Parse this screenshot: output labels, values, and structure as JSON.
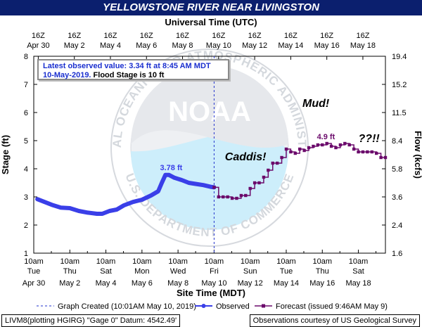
{
  "title": "YELLOWSTONE RIVER NEAR LIVINGSTON",
  "info": {
    "line1": "Latest observed value: 3.34 ft at 8:45 AM MDT",
    "line2_date": "10-May-2019.",
    "line2_flood": " Flood Stage is 10 ft"
  },
  "footer": {
    "left": "LIVM8(plotting HGIRG) \"Gage 0\" Datum: 4542.49'",
    "right": "Observations courtesy of US Geological Survey"
  },
  "watermark": {
    "center_text": "NOAA",
    "ring_text": "NATIONAL OCEANIC AND ATMOSPHERIC ADMINISTRATION",
    "bottom_text": "U.S. DEPARTMENT OF COMMERCE"
  },
  "colors": {
    "observed": "#3a3fe8",
    "forecast": "#6b0a6b",
    "title_bar": "#0b1f6e",
    "info_text": "#1a2fcf"
  },
  "chart_data": {
    "type": "line",
    "xlabel": "Site Time (MDT)",
    "top_xlabel": "Universal Time (UTC)",
    "ylabel": "Stage (ft)",
    "ylabel_right": "Flow (kcfs)",
    "ylim": [
      1,
      8
    ],
    "xlim_days_from_apr30_10am": [
      0,
      19.5
    ],
    "y_ticks": [
      "1",
      "2",
      "3",
      "4",
      "5",
      "6",
      "7",
      "8"
    ],
    "right_ticks": [
      {
        "stage": 1,
        "label": "1.6"
      },
      {
        "stage": 2,
        "label": "2.4"
      },
      {
        "stage": 3,
        "label": "3.6"
      },
      {
        "stage": 4,
        "label": "5.8"
      },
      {
        "stage": 5,
        "label": "8.4"
      },
      {
        "stage": 6,
        "label": "11.5"
      },
      {
        "stage": 7,
        "label": "15.2"
      },
      {
        "stage": 8,
        "label": "19.4"
      }
    ],
    "bottom_ticks": [
      {
        "l1": "10am",
        "l2": "Tue",
        "l3": "Apr 30"
      },
      {
        "l1": "10am",
        "l2": "Thu",
        "l3": "May 2"
      },
      {
        "l1": "10am",
        "l2": "Sat",
        "l3": "May 4"
      },
      {
        "l1": "10am",
        "l2": "Mon",
        "l3": "May 6"
      },
      {
        "l1": "10am",
        "l2": "Wed",
        "l3": "May 8"
      },
      {
        "l1": "10am",
        "l2": "Fri",
        "l3": "May 10"
      },
      {
        "l1": "10am",
        "l2": "Sun",
        "l3": "May 12"
      },
      {
        "l1": "10am",
        "l2": "Tue",
        "l3": "May 14"
      },
      {
        "l1": "10am",
        "l2": "Thu",
        "l3": "May 16"
      },
      {
        "l1": "10am",
        "l2": "Sat",
        "l3": "May 18"
      }
    ],
    "top_ticks": [
      {
        "l1": "16Z",
        "l2": "Apr 30"
      },
      {
        "l1": "16Z",
        "l2": "May 2"
      },
      {
        "l1": "16Z",
        "l2": "May 4"
      },
      {
        "l1": "16Z",
        "l2": "May 6"
      },
      {
        "l1": "16Z",
        "l2": "May 8"
      },
      {
        "l1": "16Z",
        "l2": "May 10"
      },
      {
        "l1": "16Z",
        "l2": "May 12"
      },
      {
        "l1": "16Z",
        "l2": "May 14"
      },
      {
        "l1": "16Z",
        "l2": "May 16"
      },
      {
        "l1": "16Z",
        "l2": "May 18"
      }
    ],
    "graph_created_x": 10,
    "observed": {
      "name": "Observed",
      "x": [
        0.2,
        0.6,
        1.0,
        1.5,
        2.0,
        2.5,
        3.0,
        3.5,
        3.8,
        4.2,
        4.6,
        5.0,
        5.5,
        6.0,
        6.5,
        6.9,
        7.1,
        7.3,
        7.5,
        7.8,
        8.2,
        8.6,
        9.0,
        9.4,
        9.8,
        10.0
      ],
      "y": [
        2.92,
        2.82,
        2.72,
        2.62,
        2.6,
        2.5,
        2.44,
        2.4,
        2.4,
        2.5,
        2.55,
        2.7,
        2.82,
        2.9,
        3.05,
        3.2,
        3.5,
        3.78,
        3.78,
        3.68,
        3.6,
        3.5,
        3.46,
        3.42,
        3.36,
        3.34
      ]
    },
    "forecast": {
      "name": "Forecast (issued 9:46AM May 9)",
      "x": [
        10.0,
        10.25,
        10.5,
        10.75,
        11.0,
        11.25,
        11.5,
        11.75,
        12.0,
        12.25,
        12.5,
        12.75,
        13.0,
        13.25,
        13.5,
        13.75,
        14.0,
        14.25,
        14.5,
        14.75,
        15.0,
        15.25,
        15.5,
        15.75,
        16.0,
        16.25,
        16.5,
        16.75,
        17.0,
        17.25,
        17.5,
        17.75,
        18.0,
        18.25,
        18.5,
        18.75,
        19.0,
        19.25,
        19.5
      ],
      "y": [
        3.34,
        3.0,
        3.0,
        3.0,
        2.95,
        2.95,
        3.05,
        3.05,
        3.3,
        3.5,
        3.5,
        3.7,
        3.95,
        4.2,
        4.2,
        4.4,
        4.7,
        4.6,
        4.55,
        4.7,
        4.65,
        4.75,
        4.8,
        4.85,
        4.85,
        4.9,
        4.8,
        4.75,
        4.85,
        4.9,
        4.85,
        4.7,
        4.6,
        4.6,
        4.6,
        4.6,
        4.55,
        4.4,
        4.4
      ]
    },
    "annotations": [
      {
        "text": "3.78 ft",
        "x": 7.0,
        "y": 3.95,
        "color": "#3a3fe8"
      },
      {
        "text": "4.9 ft",
        "x": 15.7,
        "y": 5.05,
        "color": "#6b0a6b"
      },
      {
        "text": "Caddis!",
        "x": 10.6,
        "y": 4.3,
        "color": "#000000"
      },
      {
        "text": "Mud!",
        "x": 14.9,
        "y": 6.2,
        "color": "#000000"
      },
      {
        "text": "??!!",
        "x": 18.0,
        "y": 4.95,
        "color": "#000000"
      }
    ],
    "legend": [
      {
        "label": "Graph Created (10:01AM May 10, 2019)",
        "style": "dashed"
      },
      {
        "label": "Observed",
        "style": "observed"
      },
      {
        "label": "Forecast (issued 9:46AM May 9)",
        "style": "forecast"
      }
    ],
    "legend_position": "bottom",
    "grid": false
  }
}
